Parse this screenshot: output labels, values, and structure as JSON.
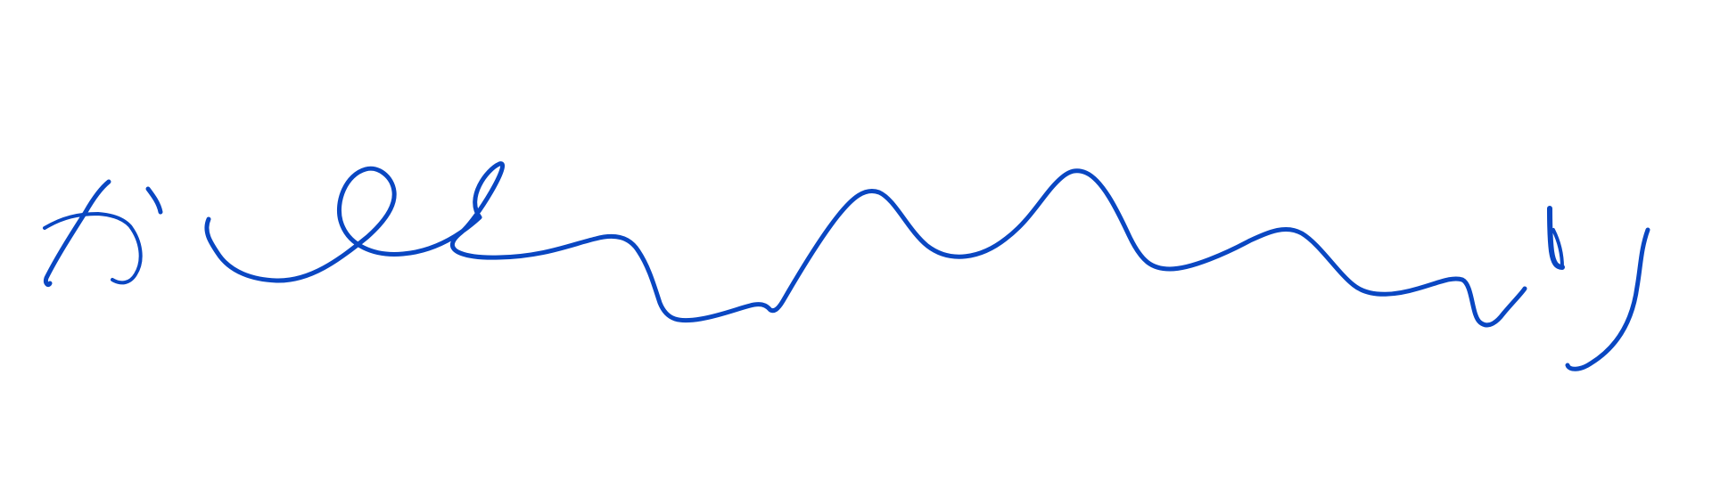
{
  "handwriting": {
    "text": "かいいりり",
    "ink_color": "#0a47c2",
    "background_color": "#ffffff"
  }
}
